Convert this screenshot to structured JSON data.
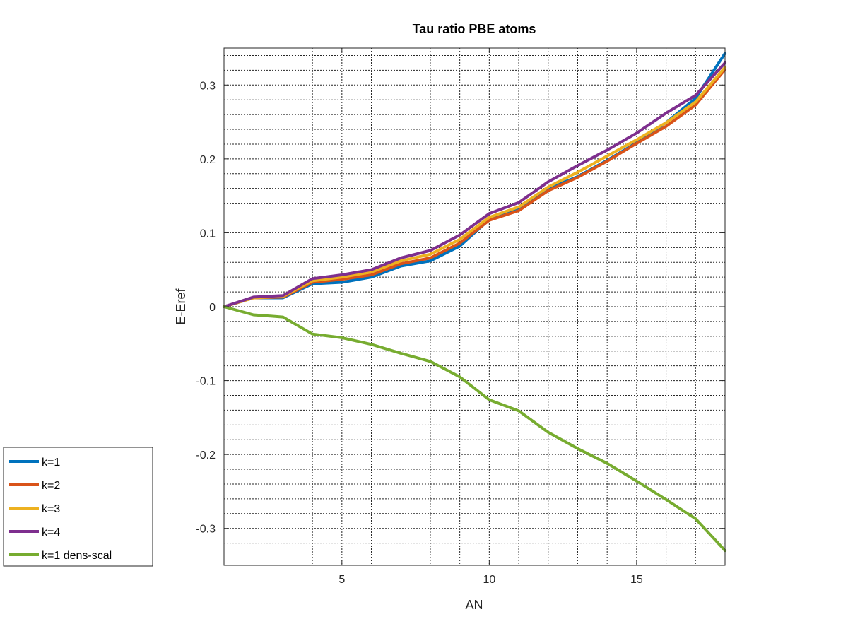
{
  "chart_data": {
    "type": "line",
    "title": "Tau ratio PBE atoms",
    "xlabel": "AN",
    "ylabel": "E-Eref",
    "xlim": [
      1,
      18
    ],
    "ylim": [
      -0.35,
      0.35
    ],
    "x_ticks": [
      5,
      10,
      15
    ],
    "x_tick_labels": [
      "5",
      "10",
      "15"
    ],
    "y_ticks": [
      -0.3,
      -0.2,
      -0.1,
      0,
      0.1,
      0.2,
      0.3
    ],
    "y_tick_labels": [
      "-0.3",
      "-0.2",
      "-0.1",
      "0",
      "0.1",
      "0.2",
      "0.3"
    ],
    "x_minor_ticks": [
      4,
      6,
      8,
      9,
      11,
      12,
      13,
      14,
      16,
      17
    ],
    "y_minor_ticks": [
      -0.34,
      -0.32,
      -0.28,
      -0.26,
      -0.24,
      -0.22,
      -0.18,
      -0.16,
      -0.14,
      -0.12,
      -0.08,
      -0.06,
      -0.04,
      -0.02,
      0.02,
      0.04,
      0.06,
      0.08,
      0.12,
      0.14,
      0.16,
      0.18,
      0.22,
      0.24,
      0.26,
      0.28,
      0.32,
      0.34
    ],
    "grid": true,
    "legend_position": "outside-bottom-left",
    "x": [
      1,
      2,
      3,
      4,
      5,
      6,
      7,
      8,
      9,
      10,
      11,
      12,
      13,
      14,
      15,
      16,
      17,
      18
    ],
    "series": [
      {
        "name": "k=1",
        "color": "#0072bd",
        "values": [
          0,
          0.012,
          0.012,
          0.031,
          0.033,
          0.04,
          0.055,
          0.062,
          0.082,
          0.118,
          0.132,
          0.16,
          0.176,
          0.198,
          0.222,
          0.249,
          0.282,
          0.343
        ]
      },
      {
        "name": "k=2",
        "color": "#d95319",
        "values": [
          0,
          0.012,
          0.013,
          0.033,
          0.037,
          0.043,
          0.058,
          0.066,
          0.086,
          0.117,
          0.13,
          0.157,
          0.175,
          0.197,
          0.221,
          0.244,
          0.273,
          0.321
        ]
      },
      {
        "name": "k=3",
        "color": "#edb120",
        "values": [
          0,
          0.012,
          0.014,
          0.035,
          0.04,
          0.047,
          0.062,
          0.071,
          0.091,
          0.121,
          0.135,
          0.162,
          0.182,
          0.204,
          0.226,
          0.249,
          0.277,
          0.324
        ]
      },
      {
        "name": "k=4",
        "color": "#7e2f8e",
        "values": [
          0,
          0.013,
          0.015,
          0.038,
          0.043,
          0.05,
          0.066,
          0.076,
          0.097,
          0.126,
          0.141,
          0.169,
          0.191,
          0.212,
          0.235,
          0.262,
          0.286,
          0.33
        ]
      },
      {
        "name": "k=1 dens-scal",
        "color": "#77ac30",
        "values": [
          0,
          -0.011,
          -0.014,
          -0.037,
          -0.042,
          -0.051,
          -0.063,
          -0.074,
          -0.095,
          -0.126,
          -0.141,
          -0.17,
          -0.192,
          -0.212,
          -0.236,
          -0.261,
          -0.287,
          -0.33
        ]
      }
    ]
  }
}
